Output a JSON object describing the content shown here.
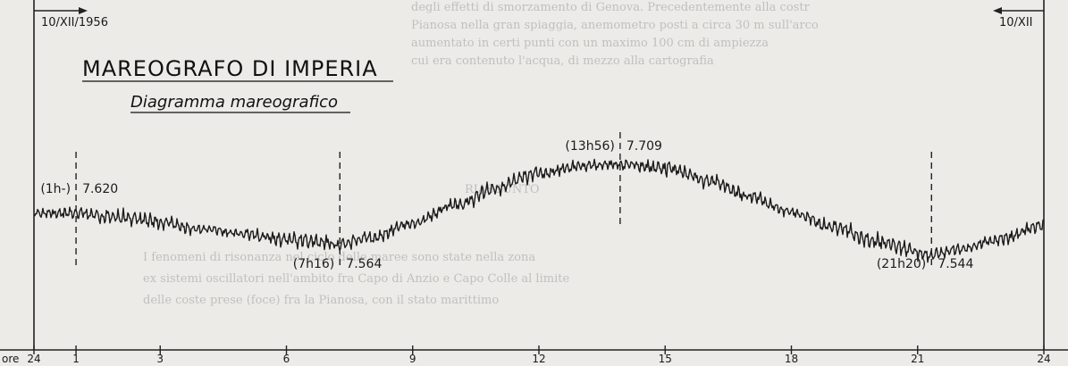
{
  "chart_data": {
    "type": "line",
    "title": "MAREOGRAFO DI IMPERIA",
    "subtitle": "Diagramma mareografico",
    "date_start": "10/XII/1956",
    "date_end": "10/XII",
    "x_axis_prefix": "ore",
    "x_ticks": [
      {
        "h": 0,
        "label": "24"
      },
      {
        "h": 1,
        "label": "1"
      },
      {
        "h": 3,
        "label": "3"
      },
      {
        "h": 6,
        "label": "6"
      },
      {
        "h": 9,
        "label": "9"
      },
      {
        "h": 12,
        "label": "12"
      },
      {
        "h": 15,
        "label": "15"
      },
      {
        "h": 18,
        "label": "18"
      },
      {
        "h": 21,
        "label": "21"
      },
      {
        "h": 24,
        "label": "24"
      }
    ],
    "xlim": [
      0,
      24
    ],
    "series": [
      {
        "x": [
          0,
          1,
          2,
          3,
          4,
          5,
          6,
          7.27,
          8,
          9,
          10,
          11,
          12,
          13,
          13.93,
          15,
          16,
          17,
          18,
          19,
          20,
          21,
          21.33,
          22,
          23,
          24
        ],
        "y": [
          7.62,
          7.62,
          7.613,
          7.603,
          7.592,
          7.582,
          7.573,
          7.564,
          7.575,
          7.602,
          7.634,
          7.666,
          7.693,
          7.705,
          7.709,
          7.702,
          7.68,
          7.651,
          7.622,
          7.595,
          7.57,
          7.55,
          7.544,
          7.556,
          7.574,
          7.598
        ]
      }
    ],
    "annotations": [
      {
        "time_label": "(1h-)",
        "value": "7.620",
        "h": 1,
        "y": 7.62
      },
      {
        "time_label": "(7h16)",
        "value": "7.564",
        "h": 7.27,
        "y": 7.564
      },
      {
        "time_label": "(13h56)",
        "value": "7.709",
        "h": 13.93,
        "y": 7.709
      },
      {
        "time_label": "(21h20)",
        "value": "7.544",
        "h": 21.33,
        "y": 7.544
      }
    ]
  }
}
